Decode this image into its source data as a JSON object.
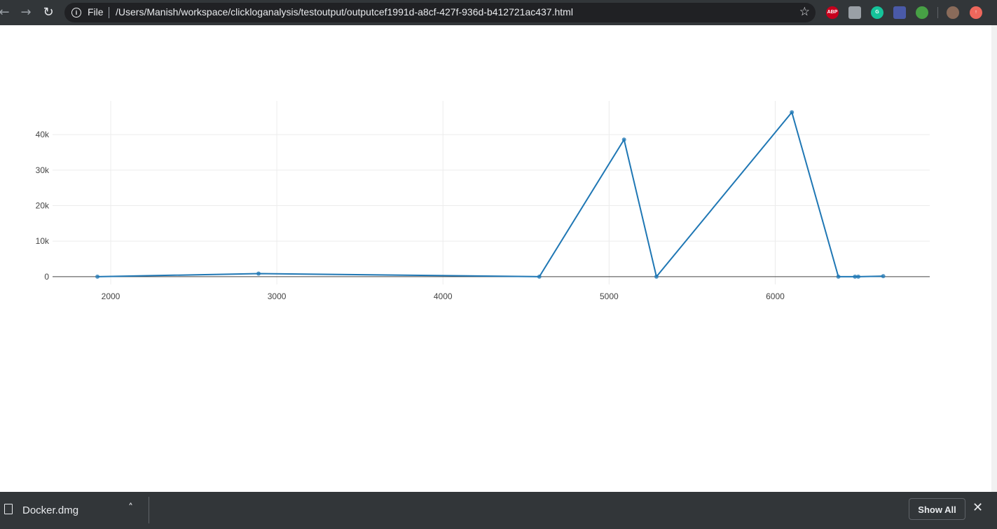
{
  "browser": {
    "scheme_label": "File",
    "url": "/Users/Manish/workspace/clickloganalysis/testoutput/outputcef1991d-a8cf-427f-936d-b412721ac437.html",
    "back_icon": "←",
    "forward_icon": "→",
    "reload_icon": "↻",
    "info_icon": "i",
    "star_icon": "☆",
    "extensions": [
      {
        "name": "abp-icon",
        "label": "ABP",
        "color": "#c7001d"
      },
      {
        "name": "extension-icon",
        "label": "",
        "color": "#9aa0a6"
      },
      {
        "name": "grammarly-icon",
        "label": "G",
        "color": "#15c39a"
      },
      {
        "name": "extension-window-icon",
        "label": "",
        "color": "#4a5aa8"
      },
      {
        "name": "extension-green-icon",
        "label": "",
        "color": "#47a045"
      },
      {
        "name": "profile-avatar-icon",
        "label": "",
        "color": "#8a6b5a"
      },
      {
        "name": "update-icon",
        "label": "↑",
        "color": "#ee675c"
      }
    ]
  },
  "chart_data": {
    "type": "line",
    "xlim": [
      1650,
      6930
    ],
    "ylim": [
      -2200,
      49500
    ],
    "xticks": [
      2000,
      3000,
      4000,
      5000,
      6000
    ],
    "xtick_labels": [
      "2000",
      "3000",
      "4000",
      "5000",
      "6000"
    ],
    "yticks": [
      0,
      10000,
      20000,
      30000,
      40000
    ],
    "ytick_labels": [
      "0",
      "10k",
      "20k",
      "30k",
      "40k"
    ],
    "grid": true,
    "line_color": "#1f77b4",
    "series": [
      {
        "x": [
          1920,
          2890,
          4580,
          5090,
          5285,
          6100,
          6380,
          6480,
          6500,
          6650
        ],
        "y": [
          0,
          850,
          0,
          38600,
          0,
          46300,
          0,
          0,
          0,
          150
        ]
      }
    ]
  },
  "downloads": {
    "file_name": "Docker.dmg",
    "chevron_icon": "˄",
    "show_all_label": "Show All",
    "close_icon": "✕"
  }
}
